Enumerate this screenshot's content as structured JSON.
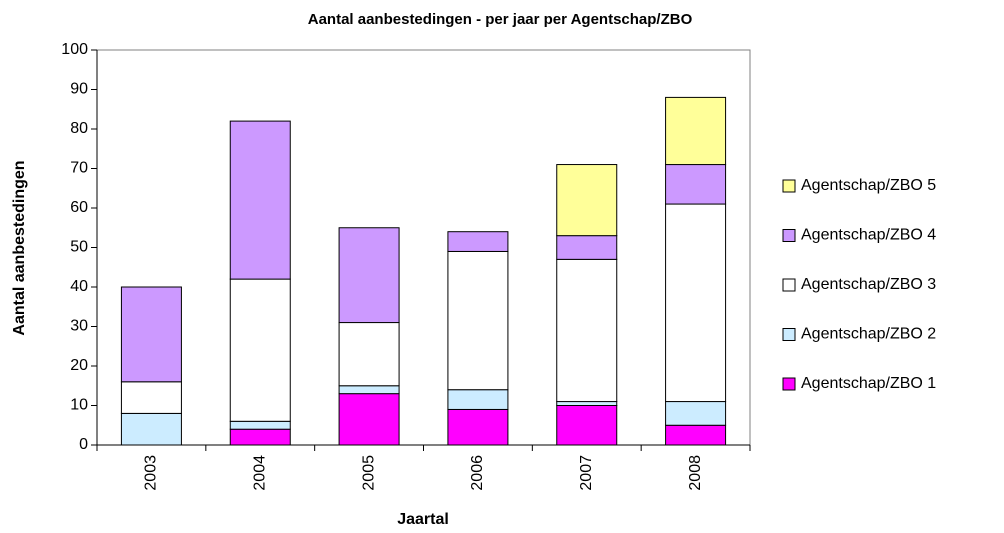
{
  "chart_data": {
    "type": "stacked_bar",
    "title": "Aantal aanbestedingen - per jaar per Agentschap/ZBO",
    "x_label": "Jaartal",
    "y_label": "Aantal aanbestedingen",
    "categories": [
      "2003",
      "2004",
      "2005",
      "2006",
      "2007",
      "2008"
    ],
    "series": [
      {
        "name": "Agentschap/ZBO 1",
        "color": "#ff00ff",
        "values": [
          0,
          4,
          13,
          9,
          10,
          5
        ]
      },
      {
        "name": "Agentschap/ZBO 2",
        "color": "#ccecff",
        "values": [
          8,
          2,
          2,
          5,
          1,
          6
        ]
      },
      {
        "name": "Agentschap/ZBO 3",
        "color": "#ffffff",
        "values": [
          8,
          36,
          16,
          35,
          36,
          50
        ]
      },
      {
        "name": "Agentschap/ZBO 4",
        "color": "#cc99ff",
        "values": [
          24,
          40,
          24,
          5,
          6,
          10
        ]
      },
      {
        "name": "Agentschap/ZBO 5",
        "color": "#ffff99",
        "values": [
          0,
          0,
          0,
          0,
          18,
          17
        ]
      }
    ],
    "ylim": [
      0,
      100
    ],
    "yticks": [
      0,
      10,
      20,
      30,
      40,
      50,
      60,
      70,
      80,
      90,
      100
    ],
    "legend": "right"
  }
}
